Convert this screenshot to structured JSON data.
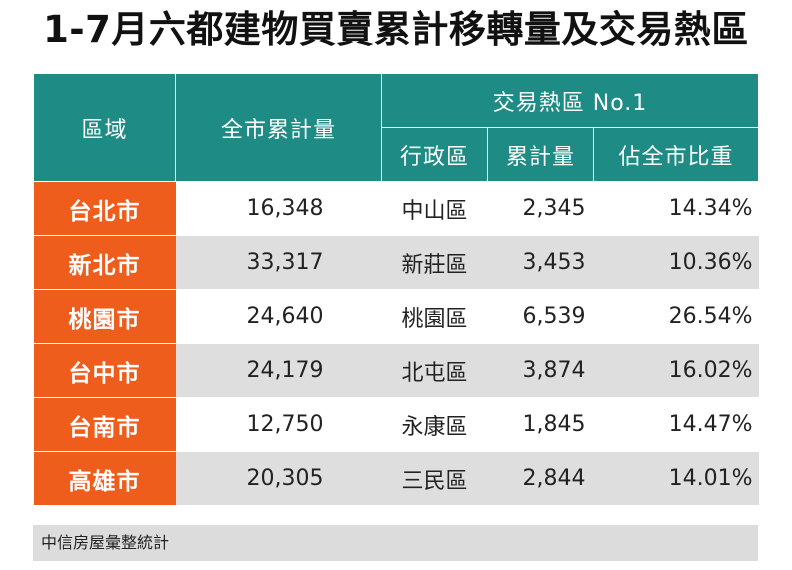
{
  "title": "1-7月六都建物買賣累計移轉量及交易熱區",
  "header": {
    "region": "區域",
    "citywide_total": "全市累計量",
    "hot_zone": "交易熱區 No.1",
    "district": "行政區",
    "volume": "累計量",
    "share": "佔全市比重"
  },
  "rows": [
    {
      "region": "台北市",
      "total": "16,348",
      "district": "中山區",
      "volume": "2,345",
      "share": "14.34%"
    },
    {
      "region": "新北市",
      "total": "33,317",
      "district": "新莊區",
      "volume": "3,453",
      "share": "10.36%"
    },
    {
      "region": "桃園市",
      "total": "24,640",
      "district": "桃園區",
      "volume": "6,539",
      "share": "26.54%"
    },
    {
      "region": "台中市",
      "total": "24,179",
      "district": "北屯區",
      "volume": "3,874",
      "share": "16.02%"
    },
    {
      "region": "台南市",
      "total": "12,750",
      "district": "永康區",
      "volume": "1,845",
      "share": "14.47%"
    },
    {
      "region": "高雄市",
      "total": "20,305",
      "district": "三民區",
      "volume": "2,844",
      "share": "14.01%"
    }
  ],
  "source": "中信房屋彙整統計",
  "colors": {
    "header": "#1e8c84",
    "region": "#ee5d1c",
    "stripe": "#dedede"
  }
}
